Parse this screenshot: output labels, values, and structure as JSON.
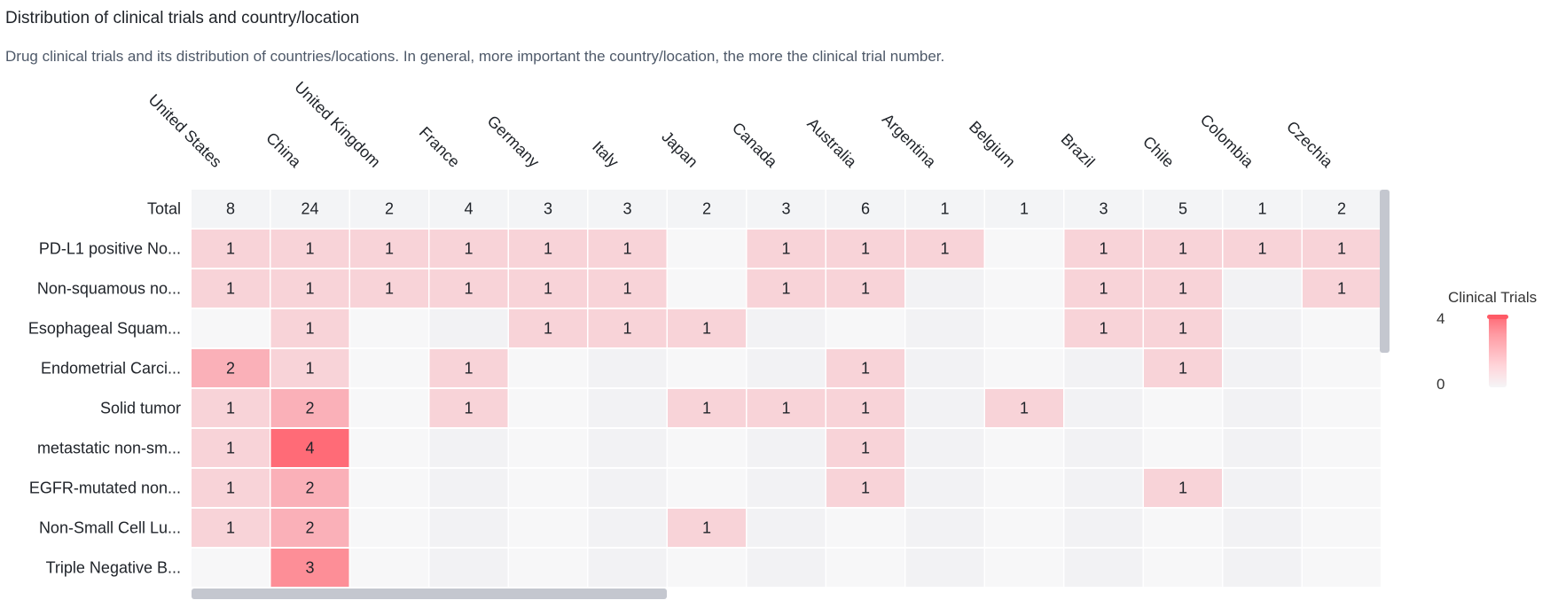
{
  "title": "Distribution of clinical trials and country/location",
  "subtitle": "Drug clinical trials and its distribution of countries/locations. In general, more important the country/location, the more the clinical trial number.",
  "legend": {
    "title": "Clinical Trials",
    "max": "4",
    "min": "0"
  },
  "colors": {
    "high": "#ff6b77",
    "low": "#f8d3d8",
    "total_bg": "#f3f4f6",
    "empty_a": "#f7f7f8",
    "empty_b": "#f2f2f4"
  },
  "chart_data": {
    "type": "heatmap",
    "title": "Distribution of clinical trials and country/location",
    "x_categories": [
      "United States",
      "China",
      "United Kingdom",
      "France",
      "Germany",
      "Italy",
      "Japan",
      "Canada",
      "Australia",
      "Argentina",
      "Belgium",
      "Brazil",
      "Chile",
      "Colombia",
      "Czechia"
    ],
    "total_label": "Total",
    "totals": [
      8,
      24,
      2,
      4,
      3,
      3,
      2,
      3,
      6,
      1,
      1,
      3,
      5,
      1,
      2
    ],
    "y_categories": [
      "PD-L1 positive No...",
      "Non-squamous no...",
      "Esophageal Squam...",
      "Endometrial Carci...",
      "Solid tumor",
      "metastatic non-sm...",
      "EGFR-mutated non...",
      "Non-Small Cell Lu...",
      "Triple Negative B..."
    ],
    "values": [
      [
        1,
        1,
        1,
        1,
        1,
        1,
        null,
        1,
        1,
        1,
        null,
        1,
        1,
        1,
        1
      ],
      [
        1,
        1,
        1,
        1,
        1,
        1,
        null,
        1,
        1,
        null,
        null,
        1,
        1,
        null,
        1
      ],
      [
        null,
        1,
        null,
        null,
        1,
        1,
        1,
        null,
        null,
        null,
        null,
        1,
        1,
        null,
        null
      ],
      [
        2,
        1,
        null,
        1,
        null,
        null,
        null,
        null,
        1,
        null,
        null,
        null,
        1,
        null,
        null
      ],
      [
        1,
        2,
        null,
        1,
        null,
        null,
        1,
        1,
        1,
        null,
        1,
        null,
        null,
        null,
        null
      ],
      [
        1,
        4,
        null,
        null,
        null,
        null,
        null,
        null,
        1,
        null,
        null,
        null,
        null,
        null,
        null
      ],
      [
        1,
        2,
        null,
        null,
        null,
        null,
        null,
        null,
        1,
        null,
        null,
        null,
        1,
        null,
        null
      ],
      [
        1,
        2,
        null,
        null,
        null,
        null,
        1,
        null,
        null,
        null,
        null,
        null,
        null,
        null,
        null
      ],
      [
        null,
        3,
        null,
        null,
        null,
        null,
        null,
        null,
        null,
        null,
        null,
        null,
        null,
        null,
        null
      ]
    ],
    "color_range": [
      0,
      4
    ],
    "legend_title": "Clinical Trials"
  }
}
